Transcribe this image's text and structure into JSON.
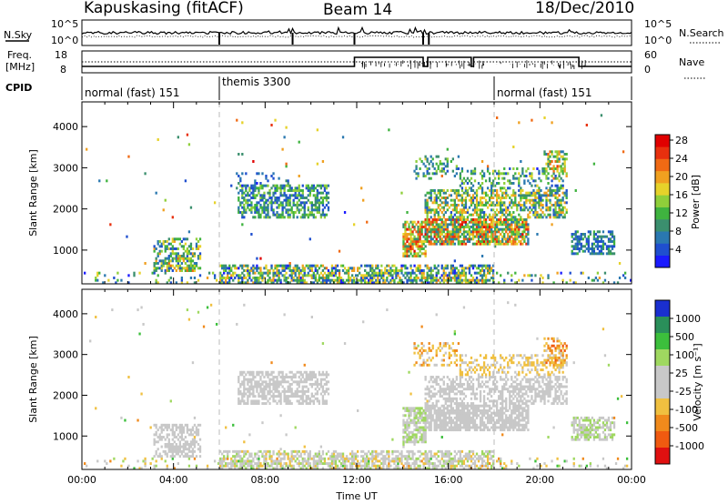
{
  "header": {
    "radar": "Kapuskasing (fitACF)",
    "beam": "Beam 14",
    "date": "18/Dec/2010"
  },
  "noise_panel": {
    "left_label": "N.Sky",
    "left_ticks": [
      "10^5",
      "10^0"
    ],
    "right_label": "N.Search",
    "right_ticks": [
      "10^5",
      "10^0"
    ]
  },
  "freq_panel": {
    "left_label_1": "Freq.",
    "left_label_2": "[MHz]",
    "left_ticks": [
      "18",
      "8"
    ],
    "right_label": "Nave",
    "right_ticks": [
      "60",
      "0"
    ]
  },
  "cpid_panel": {
    "label": "CPID",
    "modes": [
      {
        "name": "normal (fast) 151",
        "start_hr": 0,
        "end_hr": 6
      },
      {
        "name": "themis 3300",
        "start_hr": 6,
        "end_hr": 18
      },
      {
        "name": "normal (fast) 151",
        "start_hr": 18,
        "end_hr": 24
      }
    ]
  },
  "chart_data": [
    {
      "type": "heatmap",
      "title": "",
      "xlabel": "",
      "ylabel": "Slant Range [km]",
      "xlim": [
        0,
        24
      ],
      "ylim": [
        180,
        4600
      ],
      "y_ticks": [
        1000,
        2000,
        3000,
        4000
      ],
      "colorbar": {
        "label": "Power [dB]",
        "ticks": [
          "4",
          "8",
          "12",
          "16",
          "20",
          "24",
          "28"
        ],
        "colors": [
          "#1a1aff",
          "#1f4fcf",
          "#2a78b0",
          "#3b8f6e",
          "#3fb33f",
          "#8fcf3a",
          "#e6d22a",
          "#f0a020",
          "#f06a14",
          "#e8300e",
          "#e00000"
        ],
        "range": [
          0,
          30
        ]
      },
      "regions": [
        {
          "t0": 0.1,
          "t1": 24,
          "r0": 200,
          "r1": 500,
          "v0": 2,
          "v1": 20,
          "d": 0.12
        },
        {
          "t0": 3.1,
          "t1": 5.2,
          "r0": 500,
          "r1": 1300,
          "v0": 3,
          "v1": 20,
          "d": 0.45
        },
        {
          "t0": 3.6,
          "t1": 4.9,
          "r0": 500,
          "r1": 850,
          "v0": 10,
          "v1": 24,
          "d": 0.65
        },
        {
          "t0": 6.8,
          "t1": 10.8,
          "r0": 1800,
          "r1": 2600,
          "v0": 3,
          "v1": 16,
          "d": 0.55
        },
        {
          "t0": 6.5,
          "t1": 9.0,
          "r0": 2500,
          "r1": 2900,
          "v0": 2,
          "v1": 10,
          "d": 0.2
        },
        {
          "t0": 6.0,
          "t1": 18.0,
          "r0": 200,
          "r1": 650,
          "v0": 2,
          "v1": 22,
          "d": 0.55
        },
        {
          "t0": 14.0,
          "t1": 15.0,
          "r0": 850,
          "r1": 1700,
          "v0": 8,
          "v1": 28,
          "d": 0.75
        },
        {
          "t0": 15.0,
          "t1": 19.5,
          "r0": 1150,
          "r1": 1800,
          "v0": 6,
          "v1": 28,
          "d": 0.8
        },
        {
          "t0": 15.0,
          "t1": 21.2,
          "r0": 1800,
          "r1": 2500,
          "v0": 4,
          "v1": 22,
          "d": 0.55
        },
        {
          "t0": 16.5,
          "t1": 21.0,
          "r0": 2500,
          "r1": 3000,
          "v0": 3,
          "v1": 18,
          "d": 0.3
        },
        {
          "t0": 20.2,
          "t1": 21.2,
          "r0": 2700,
          "r1": 3400,
          "v0": 6,
          "v1": 26,
          "d": 0.5
        },
        {
          "t0": 21.4,
          "t1": 23.3,
          "r0": 900,
          "r1": 1500,
          "v0": 3,
          "v1": 12,
          "d": 0.55
        },
        {
          "t0": 14.5,
          "t1": 16.5,
          "r0": 2700,
          "r1": 3300,
          "v0": 4,
          "v1": 16,
          "d": 0.25
        },
        {
          "t0": 0.2,
          "t1": 23.8,
          "r0": 500,
          "r1": 4300,
          "v0": 2,
          "v1": 28,
          "d": 0.005
        }
      ]
    },
    {
      "type": "heatmap",
      "title": "",
      "xlabel": "Time UT",
      "ylabel": "Slant Range [km]",
      "xlim": [
        0,
        24
      ],
      "ylim": [
        180,
        4600
      ],
      "y_ticks": [
        1000,
        2000,
        3000,
        4000
      ],
      "x_ticks": [
        "00:00",
        "04:00",
        "08:00",
        "12:00",
        "16:00",
        "20:00",
        "00:00"
      ],
      "colorbar": {
        "label": "Velocity [m s⁻¹]",
        "ticks": [
          "1000",
          "500",
          "100",
          "25",
          "-25",
          "-100",
          "-500",
          "-1000"
        ],
        "colors": [
          "#1a2fd0",
          "#2a8f5a",
          "#3cbf3c",
          "#9fd860",
          "#c8c8c8",
          "#c8c8c8",
          "#f0c040",
          "#f08a1c",
          "#f05a10",
          "#e01010"
        ],
        "range": [
          -1000,
          1000
        ]
      },
      "regions": [
        {
          "t0": 0.1,
          "t1": 24,
          "r0": 200,
          "r1": 500,
          "v0": -500,
          "v1": 500,
          "d": 0.12
        },
        {
          "t0": 3.1,
          "t1": 5.2,
          "r0": 500,
          "r1": 1300,
          "v0": -20,
          "v1": 20,
          "d": 0.45
        },
        {
          "t0": 3.6,
          "t1": 4.9,
          "r0": 550,
          "r1": 850,
          "v0": -150,
          "v1": 200,
          "d": 0.6
        },
        {
          "t0": 6.8,
          "t1": 10.8,
          "r0": 1800,
          "r1": 2600,
          "v0": -20,
          "v1": 20,
          "d": 0.6
        },
        {
          "t0": 6.0,
          "t1": 18.0,
          "r0": 200,
          "r1": 650,
          "v0": -300,
          "v1": 300,
          "d": 0.55
        },
        {
          "t0": 14.0,
          "t1": 15.0,
          "r0": 850,
          "r1": 1700,
          "v0": -100,
          "v1": 400,
          "d": 0.7
        },
        {
          "t0": 15.0,
          "t1": 19.5,
          "r0": 1150,
          "r1": 1800,
          "v0": -20,
          "v1": 20,
          "d": 0.8
        },
        {
          "t0": 15.0,
          "t1": 21.2,
          "r0": 1800,
          "r1": 2500,
          "v0": -60,
          "v1": 200,
          "d": 0.5
        },
        {
          "t0": 16.5,
          "t1": 21.0,
          "r0": 2500,
          "r1": 3000,
          "v0": -400,
          "v1": -80,
          "d": 0.35
        },
        {
          "t0": 20.2,
          "t1": 21.2,
          "r0": 2700,
          "r1": 3400,
          "v0": -700,
          "v1": -150,
          "d": 0.5
        },
        {
          "t0": 21.4,
          "t1": 23.3,
          "r0": 900,
          "r1": 1500,
          "v0": 60,
          "v1": 300,
          "d": 0.55
        },
        {
          "t0": 14.5,
          "t1": 16.5,
          "r0": 2700,
          "r1": 3300,
          "v0": -500,
          "v1": -100,
          "d": 0.3
        },
        {
          "t0": 0.2,
          "t1": 23.8,
          "r0": 500,
          "r1": 4300,
          "v0": -500,
          "v1": 500,
          "d": 0.005
        }
      ]
    }
  ]
}
